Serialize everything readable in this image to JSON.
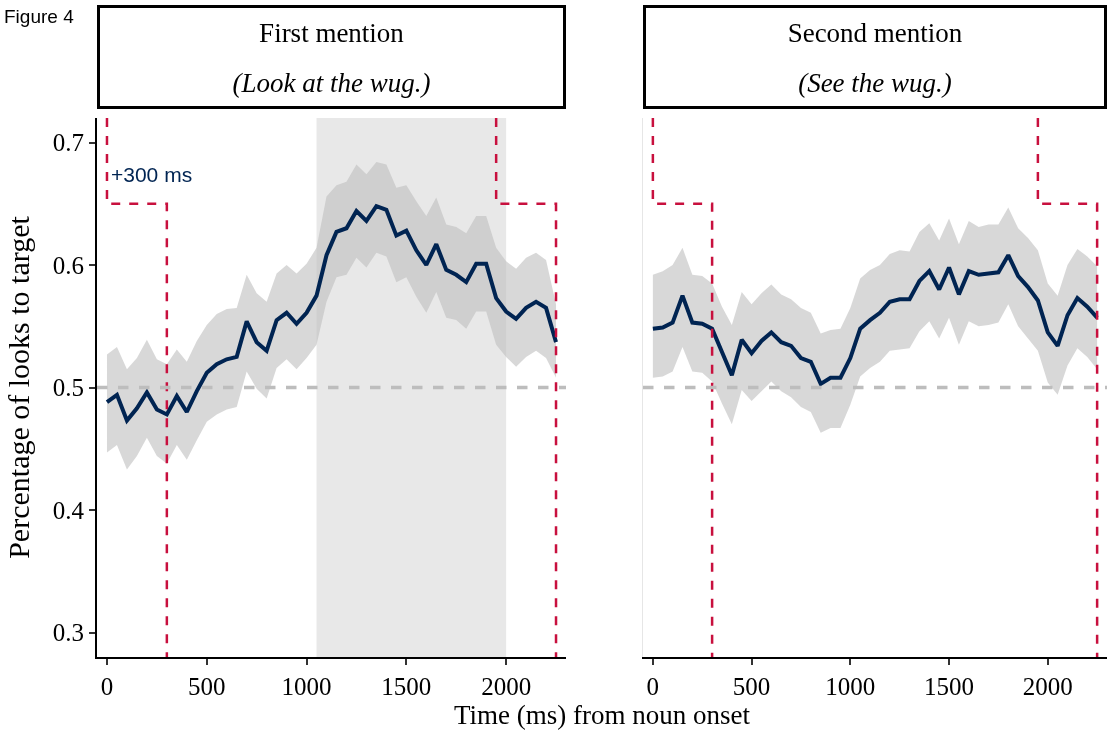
{
  "chart_data": [
    {
      "type": "line",
      "title": "First mention",
      "subtitle": "(Look at the wug.)",
      "xlabel": "Time (ms) from noun onset",
      "ylabel": "Percentage of looks to target",
      "annotations": [
        "Figure 4",
        "+300 ms"
      ],
      "x": [
        0,
        50,
        100,
        150,
        200,
        250,
        300,
        350,
        400,
        450,
        500,
        550,
        600,
        650,
        700,
        750,
        800,
        850,
        900,
        950,
        1000,
        1050,
        1100,
        1150,
        1200,
        1250,
        1300,
        1350,
        1400,
        1450,
        1500,
        1550,
        1600,
        1650,
        1700,
        1750,
        1800,
        1850,
        1900,
        1950,
        2000,
        2050,
        2100,
        2150,
        2200,
        2250
      ],
      "series": [
        {
          "color": "#002452",
          "line_style": "solid",
          "values": [
            0.488,
            0.494,
            0.473,
            0.483,
            0.496,
            0.482,
            0.478,
            0.493,
            0.48,
            0.497,
            0.512,
            0.519,
            0.523,
            0.525,
            0.554,
            0.537,
            0.53,
            0.555,
            0.561,
            0.552,
            0.561,
            0.575,
            0.608,
            0.627,
            0.63,
            0.644,
            0.636,
            0.648,
            0.645,
            0.624,
            0.628,
            0.612,
            0.6,
            0.617,
            0.596,
            0.592,
            0.586,
            0.601,
            0.601,
            0.573,
            0.562,
            0.556,
            0.565,
            0.57,
            0.565,
            0.537
          ],
          "lower": [
            0.447,
            0.453,
            0.433,
            0.444,
            0.459,
            0.444,
            0.438,
            0.453,
            0.441,
            0.457,
            0.472,
            0.478,
            0.482,
            0.484,
            0.513,
            0.499,
            0.491,
            0.516,
            0.523,
            0.515,
            0.524,
            0.535,
            0.57,
            0.59,
            0.592,
            0.606,
            0.598,
            0.61,
            0.607,
            0.586,
            0.59,
            0.574,
            0.561,
            0.578,
            0.557,
            0.555,
            0.548,
            0.562,
            0.562,
            0.535,
            0.525,
            0.517,
            0.525,
            0.53,
            0.524,
            0.508
          ],
          "upper": [
            0.527,
            0.533,
            0.515,
            0.524,
            0.539,
            0.523,
            0.519,
            0.531,
            0.521,
            0.538,
            0.551,
            0.56,
            0.564,
            0.565,
            0.592,
            0.577,
            0.57,
            0.593,
            0.6,
            0.593,
            0.601,
            0.614,
            0.656,
            0.665,
            0.668,
            0.682,
            0.674,
            0.684,
            0.682,
            0.663,
            0.665,
            0.652,
            0.64,
            0.655,
            0.633,
            0.631,
            0.626,
            0.64,
            0.64,
            0.614,
            0.603,
            0.597,
            0.606,
            0.61,
            0.604,
            0.568
          ]
        },
        {
          "type": "line",
          "color": "#c8103e",
          "line_style": "dashed",
          "x": [
            0,
            0,
            300,
            300
          ],
          "values": [
            0.72,
            0.65,
            0.65,
            0.28
          ]
        },
        {
          "type": "line",
          "color": "#c8103e",
          "line_style": "dashed",
          "x": [
            1950,
            1950,
            2250,
            2250
          ],
          "values": [
            0.72,
            0.65,
            0.65,
            0.28
          ]
        }
      ],
      "bands": [
        {
          "axis": "x",
          "from": 1050,
          "to": 2000,
          "color": "#e8e8e8"
        }
      ],
      "ref_lines": [
        {
          "axis": "y",
          "value": 0.5,
          "color": "#bdbdbd",
          "line_style": "dashed"
        }
      ],
      "xlim": [
        -50,
        2300
      ],
      "ylim": [
        0.28,
        0.72
      ],
      "xticks": [
        0,
        500,
        1000,
        1500,
        2000
      ],
      "yticks": [
        0.3,
        0.4,
        0.5,
        0.6,
        0.7
      ],
      "grid": false
    },
    {
      "type": "line",
      "title": "Second mention",
      "subtitle": "(See the wug.)",
      "x": [
        0,
        50,
        100,
        150,
        200,
        250,
        300,
        350,
        400,
        450,
        500,
        550,
        600,
        650,
        700,
        750,
        800,
        850,
        900,
        950,
        1000,
        1050,
        1100,
        1150,
        1200,
        1250,
        1300,
        1350,
        1400,
        1450,
        1500,
        1550,
        1600,
        1650,
        1700,
        1750,
        1800,
        1850,
        1900,
        1950,
        2000,
        2050,
        2100,
        2150,
        2200,
        2250
      ],
      "series": [
        {
          "color": "#002452",
          "line_style": "solid",
          "values": [
            0.548,
            0.549,
            0.553,
            0.575,
            0.553,
            0.552,
            0.548,
            0.529,
            0.51,
            0.539,
            0.528,
            0.538,
            0.545,
            0.537,
            0.534,
            0.524,
            0.521,
            0.503,
            0.508,
            0.508,
            0.524,
            0.548,
            0.555,
            0.561,
            0.57,
            0.572,
            0.572,
            0.587,
            0.595,
            0.58,
            0.598,
            0.576,
            0.595,
            0.592,
            0.593,
            0.594,
            0.608,
            0.591,
            0.582,
            0.571,
            0.545,
            0.534,
            0.559,
            0.573,
            0.566,
            0.557
          ],
          "lower": [
            0.508,
            0.509,
            0.513,
            0.533,
            0.513,
            0.512,
            0.505,
            0.487,
            0.47,
            0.498,
            0.489,
            0.497,
            0.505,
            0.497,
            0.492,
            0.484,
            0.48,
            0.463,
            0.467,
            0.467,
            0.486,
            0.509,
            0.516,
            0.521,
            0.53,
            0.531,
            0.532,
            0.546,
            0.554,
            0.54,
            0.557,
            0.535,
            0.554,
            0.55,
            0.551,
            0.553,
            0.568,
            0.55,
            0.54,
            0.53,
            0.504,
            0.494,
            0.518,
            0.532,
            0.525,
            0.515
          ],
          "upper": [
            0.592,
            0.595,
            0.6,
            0.614,
            0.592,
            0.591,
            0.585,
            0.566,
            0.551,
            0.578,
            0.568,
            0.577,
            0.584,
            0.576,
            0.572,
            0.565,
            0.561,
            0.544,
            0.547,
            0.548,
            0.565,
            0.589,
            0.596,
            0.6,
            0.609,
            0.612,
            0.611,
            0.627,
            0.634,
            0.62,
            0.638,
            0.617,
            0.636,
            0.631,
            0.633,
            0.633,
            0.647,
            0.63,
            0.622,
            0.612,
            0.585,
            0.575,
            0.6,
            0.613,
            0.607,
            0.599
          ]
        },
        {
          "type": "line",
          "color": "#c8103e",
          "line_style": "dashed",
          "x": [
            0,
            0,
            300,
            300
          ],
          "values": [
            0.72,
            0.65,
            0.65,
            0.28
          ]
        },
        {
          "type": "line",
          "color": "#c8103e",
          "line_style": "dashed",
          "x": [
            1950,
            1950,
            2250,
            2250
          ],
          "values": [
            0.72,
            0.65,
            0.65,
            0.28
          ]
        }
      ],
      "ref_lines": [
        {
          "axis": "y",
          "value": 0.5,
          "color": "#bdbdbd",
          "line_style": "dashed"
        }
      ],
      "xlim": [
        -50,
        2300
      ],
      "ylim": [
        0.28,
        0.72
      ],
      "xticks": [
        0,
        500,
        1000,
        1500,
        2000
      ],
      "yticks": [
        0.3,
        0.4,
        0.5,
        0.6,
        0.7
      ],
      "grid": false,
      "tick_labels": "x"
    }
  ]
}
